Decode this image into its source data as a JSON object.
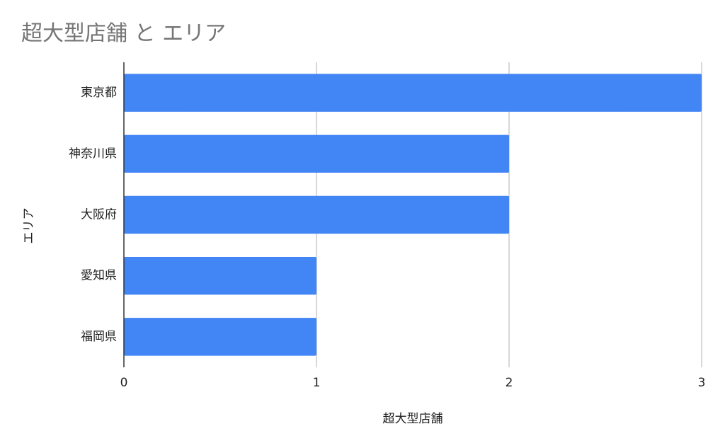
{
  "chart_data": {
    "type": "bar",
    "orientation": "horizontal",
    "title": "超大型店舗 と エリア",
    "xlabel": "超大型店舗",
    "ylabel": "エリア",
    "categories": [
      "東京都",
      "神奈川県",
      "大阪府",
      "愛知県",
      "福岡県"
    ],
    "series": [
      {
        "values": [
          3,
          2,
          2,
          1,
          1
        ]
      }
    ],
    "xlim": [
      0,
      3
    ],
    "xticks": [
      0,
      1,
      2,
      3
    ],
    "grid": true,
    "legend": "none",
    "colors": {
      "bar": "#4285f4",
      "grid": "#cccccc",
      "axis": "#333333"
    }
  }
}
